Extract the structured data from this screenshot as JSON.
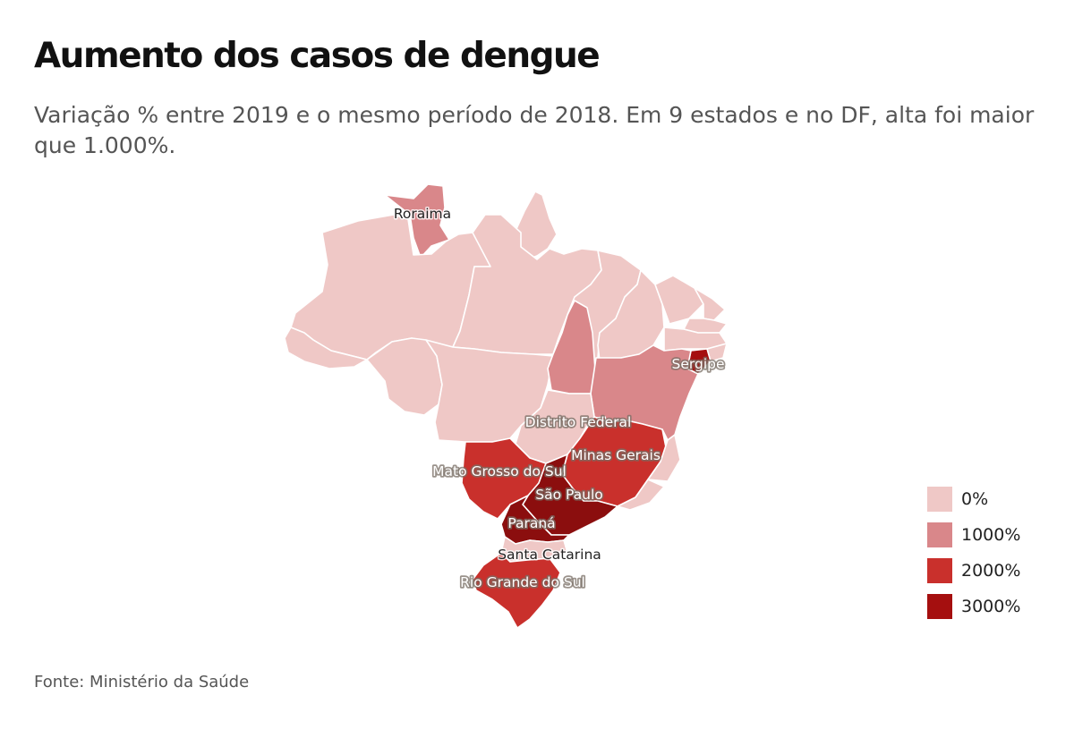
{
  "header": {
    "title": "Aumento dos casos de dengue",
    "subtitle": "Variação % entre 2019 e o mesmo período de 2018. Em 9 estados e no DF, alta foi maior que 1.000%."
  },
  "legend": {
    "items": [
      {
        "label": "0%",
        "color": "#efc8c6"
      },
      {
        "label": "1000%",
        "color": "#d9878a"
      },
      {
        "label": "2000%",
        "color": "#c9302c"
      },
      {
        "label": "3000%",
        "color": "#a50f0f"
      }
    ]
  },
  "map": {
    "states": [
      {
        "id": "RR",
        "label": "Roraima",
        "color": "#d9878a"
      },
      {
        "id": "AM",
        "label": "",
        "color": "#efc8c6"
      },
      {
        "id": "AP",
        "label": "",
        "color": "#efc8c6"
      },
      {
        "id": "PA",
        "label": "",
        "color": "#efc8c6"
      },
      {
        "id": "AC",
        "label": "",
        "color": "#efc8c6"
      },
      {
        "id": "RO",
        "label": "",
        "color": "#efc8c6"
      },
      {
        "id": "MT",
        "label": "",
        "color": "#efc8c6"
      },
      {
        "id": "MA",
        "label": "",
        "color": "#efc8c6"
      },
      {
        "id": "PI",
        "label": "",
        "color": "#efc8c6"
      },
      {
        "id": "CE",
        "label": "",
        "color": "#efc8c6"
      },
      {
        "id": "RN",
        "label": "",
        "color": "#efc8c6"
      },
      {
        "id": "PB",
        "label": "",
        "color": "#efc8c6"
      },
      {
        "id": "PE",
        "label": "",
        "color": "#efc8c6"
      },
      {
        "id": "AL",
        "label": "",
        "color": "#efc8c6"
      },
      {
        "id": "SE",
        "label": "Sergipe",
        "color": "#a50f0f"
      },
      {
        "id": "TO",
        "label": "",
        "color": "#d9878a"
      },
      {
        "id": "BA",
        "label": "",
        "color": "#d9878a"
      },
      {
        "id": "GO",
        "label": "",
        "color": "#efc8c6"
      },
      {
        "id": "DF",
        "label": "Distrito Federal",
        "color": "#c9302c"
      },
      {
        "id": "MG",
        "label": "Minas Gerais",
        "color": "#c9302c"
      },
      {
        "id": "ES",
        "label": "",
        "color": "#efc8c6"
      },
      {
        "id": "RJ",
        "label": "",
        "color": "#efc8c6"
      },
      {
        "id": "MS",
        "label": "Mato Grosso do Sul",
        "color": "#c9302c"
      },
      {
        "id": "SP",
        "label": "São Paulo",
        "color": "#8b0e0e"
      },
      {
        "id": "PR",
        "label": "Paraná",
        "color": "#8b0e0e"
      },
      {
        "id": "SC",
        "label": "Santa Catarina",
        "color": "#efc8c6"
      },
      {
        "id": "RS",
        "label": "Rio Grande do Sul",
        "color": "#c9302c"
      }
    ]
  },
  "source": "Fonte: Ministério da Saúde"
}
